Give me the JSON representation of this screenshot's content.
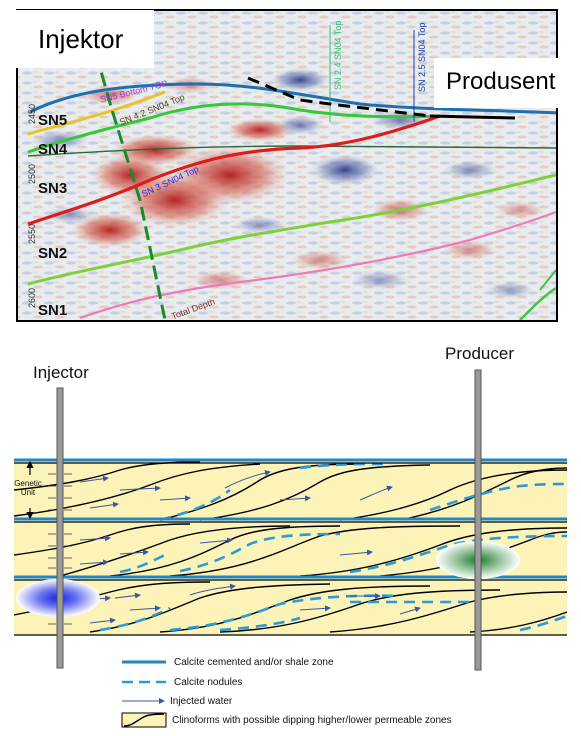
{
  "seismic": {
    "injector_label": "Injektor",
    "producer_label": "Produsent",
    "zones": [
      "SN5",
      "SN4",
      "SN3",
      "SN2",
      "SN1"
    ],
    "depth_ticks": [
      "2450",
      "2500",
      "2550",
      "2600"
    ],
    "annotations": {
      "sn5_top": "SN5 Bottom TOP",
      "sn4_top": "SN 4.2 SN04 Top",
      "sn4_mid": "SN 2.4 SN04 Top",
      "sn25": "SN 2.5 SN04 Top",
      "sn3_top": "SN 3 SN04 Top",
      "total_depth": "Total Depth"
    }
  },
  "diagram": {
    "injector_label": "Injector",
    "producer_label": "Producer",
    "genetic_unit_label": [
      "Genetic",
      "Unit"
    ],
    "colors": {
      "layer_fill": "#fcf3b9",
      "cemented_line": "#1e86c9",
      "nodule_dash": "#2c9ad6",
      "clinoform_line": "#000000",
      "water_arrow": "#3a57a0",
      "injector_blob": "#1f33e8",
      "producer_blob": "#2a8c3a"
    }
  },
  "legend": [
    {
      "key": "cemented",
      "label": "Calcite cemented and/or shale zone"
    },
    {
      "key": "nodules",
      "label": "Calcite nodules"
    },
    {
      "key": "water",
      "label": "Injected water"
    },
    {
      "key": "clinoforms",
      "label": "Clinoforms with possible dipping higher/lower permeable zones"
    }
  ]
}
